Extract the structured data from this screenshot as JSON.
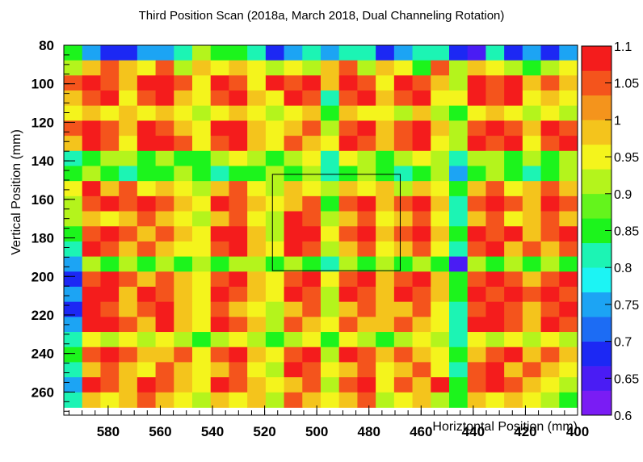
{
  "chart_data": {
    "type": "heatmap",
    "title": "Third Position Scan (2018a, March 2018, Dual Channeling Rotation)",
    "xlabel": "Horiztontal Position (mm)",
    "ylabel": "Vertical Position (mm)",
    "xlim": [
      597,
      400
    ],
    "ylim": [
      80,
      272
    ],
    "x_reversed": true,
    "x_ticks": [
      580,
      560,
      540,
      520,
      500,
      480,
      460,
      440,
      420,
      400
    ],
    "y_ticks": [
      80,
      100,
      120,
      140,
      160,
      180,
      200,
      220,
      240,
      260
    ],
    "zlim": [
      0.6,
      1.1
    ],
    "z_ticks": [
      "0.6",
      "0.65",
      "0.7",
      "0.75",
      "0.8",
      "0.85",
      "0.9",
      "0.95",
      "1",
      "1.05",
      "1.1"
    ],
    "colormap": [
      "#7a1cf4",
      "#4a1cf4",
      "#1c28f4",
      "#1c6cf4",
      "#1ca4f4",
      "#1cf4f4",
      "#1cf4b4",
      "#1cf41c",
      "#64f41c",
      "#b4f41c",
      "#f4f41c",
      "#f4c41c",
      "#f4941c",
      "#f4541c",
      "#f41c1c"
    ],
    "cells_x": 28,
    "cells_y": 24,
    "z_rows": [
      [
        0.85,
        0.75,
        0.7,
        0.7,
        0.75,
        0.75,
        0.8,
        0.9,
        0.85,
        0.85,
        0.8,
        0.7,
        0.75,
        0.8,
        0.75,
        0.8,
        0.8,
        0.7,
        0.75,
        0.8,
        0.8,
        0.7,
        0.65,
        0.8,
        0.7,
        0.75,
        0.7,
        0.75
      ],
      [
        0.9,
        1.0,
        1.05,
        1.0,
        0.95,
        1.05,
        0.9,
        1.0,
        0.95,
        1.0,
        0.95,
        0.9,
        0.95,
        0.9,
        1.0,
        1.05,
        0.9,
        1.0,
        0.95,
        0.85,
        1.05,
        0.9,
        1.0,
        0.95,
        0.9,
        0.85,
        0.9,
        0.95
      ],
      [
        1.05,
        1.1,
        1.05,
        1.0,
        1.1,
        1.1,
        1.05,
        0.95,
        1.1,
        1.05,
        0.95,
        1.1,
        1.05,
        1.1,
        1.0,
        1.1,
        1.05,
        0.95,
        1.1,
        1.05,
        1.0,
        0.9,
        1.1,
        1.05,
        1.1,
        1.0,
        1.05,
        1.0
      ],
      [
        1.0,
        1.05,
        1.1,
        0.95,
        1.05,
        1.1,
        1.0,
        0.95,
        1.05,
        1.1,
        1.0,
        0.95,
        1.1,
        1.05,
        0.8,
        1.05,
        1.1,
        1.0,
        1.05,
        1.1,
        0.95,
        0.95,
        1.1,
        1.05,
        1.1,
        0.95,
        1.0,
        0.95
      ],
      [
        0.95,
        1.0,
        0.95,
        1.0,
        0.95,
        1.0,
        0.95,
        0.9,
        0.95,
        1.0,
        0.95,
        0.9,
        0.95,
        1.0,
        0.85,
        1.0,
        0.95,
        0.95,
        0.9,
        1.0,
        0.9,
        0.85,
        0.95,
        1.0,
        0.95,
        0.9,
        0.95,
        0.9
      ],
      [
        1.05,
        1.1,
        1.05,
        1.0,
        1.1,
        1.05,
        1.0,
        0.95,
        1.1,
        1.1,
        1.0,
        0.95,
        1.0,
        1.05,
        0.9,
        1.05,
        1.1,
        1.0,
        1.05,
        1.1,
        1.0,
        0.9,
        1.05,
        1.1,
        1.05,
        1.0,
        1.1,
        1.05
      ],
      [
        1.0,
        1.1,
        1.05,
        0.95,
        1.1,
        1.1,
        1.05,
        0.95,
        1.05,
        1.1,
        1.0,
        0.95,
        1.05,
        1.0,
        0.95,
        1.1,
        1.05,
        1.0,
        1.05,
        1.1,
        0.95,
        0.9,
        1.1,
        1.05,
        1.1,
        0.95,
        1.05,
        1.1
      ],
      [
        0.8,
        0.85,
        0.9,
        0.9,
        0.85,
        0.9,
        0.85,
        0.85,
        0.9,
        0.95,
        0.9,
        0.85,
        0.9,
        0.95,
        0.8,
        0.95,
        0.9,
        0.85,
        0.9,
        0.95,
        0.9,
        0.8,
        0.9,
        0.9,
        0.85,
        0.9,
        0.85,
        0.9
      ],
      [
        0.85,
        0.9,
        0.85,
        0.8,
        0.85,
        0.85,
        0.9,
        0.85,
        0.8,
        0.85,
        0.85,
        0.9,
        0.85,
        0.9,
        0.8,
        0.85,
        0.9,
        0.85,
        0.8,
        0.85,
        0.9,
        0.75,
        0.85,
        0.9,
        0.85,
        0.8,
        0.85,
        0.9
      ],
      [
        0.95,
        1.1,
        1.0,
        1.05,
        0.95,
        1.0,
        0.95,
        0.9,
        1.0,
        1.05,
        0.95,
        0.9,
        1.0,
        0.95,
        0.9,
        1.0,
        0.95,
        1.0,
        0.9,
        1.0,
        0.95,
        0.85,
        1.0,
        1.05,
        0.95,
        1.0,
        1.05,
        1.0
      ],
      [
        0.9,
        1.05,
        1.1,
        1.05,
        1.1,
        1.05,
        1.0,
        0.95,
        1.1,
        1.05,
        1.0,
        0.95,
        1.0,
        1.05,
        0.85,
        1.05,
        1.1,
        1.0,
        1.05,
        1.1,
        1.0,
        0.8,
        1.05,
        1.1,
        1.05,
        1.0,
        1.1,
        1.05
      ],
      [
        0.9,
        1.0,
        0.95,
        1.0,
        1.05,
        1.0,
        0.95,
        0.9,
        1.0,
        1.05,
        0.95,
        0.9,
        1.1,
        1.05,
        0.9,
        1.0,
        1.05,
        0.95,
        1.0,
        1.05,
        0.95,
        0.8,
        1.0,
        1.05,
        0.95,
        1.0,
        1.05,
        1.0
      ],
      [
        0.85,
        1.05,
        1.1,
        1.05,
        1.0,
        1.05,
        1.0,
        0.95,
        1.1,
        1.1,
        1.0,
        0.9,
        1.1,
        1.1,
        0.95,
        1.05,
        1.1,
        1.0,
        1.05,
        1.1,
        1.0,
        0.85,
        1.1,
        1.05,
        1.1,
        1.0,
        1.05,
        1.1
      ],
      [
        0.8,
        1.1,
        1.05,
        1.0,
        1.05,
        1.0,
        0.95,
        0.95,
        1.05,
        1.1,
        1.0,
        0.95,
        1.1,
        1.05,
        0.9,
        1.0,
        1.05,
        0.95,
        1.0,
        1.05,
        0.95,
        0.8,
        1.05,
        1.1,
        1.0,
        1.05,
        1.0,
        1.05
      ],
      [
        0.75,
        0.9,
        0.85,
        0.9,
        0.85,
        0.9,
        0.85,
        0.9,
        0.85,
        0.9,
        0.9,
        0.85,
        0.9,
        0.85,
        0.8,
        0.9,
        0.85,
        0.9,
        0.85,
        0.9,
        0.85,
        0.65,
        0.9,
        0.85,
        0.9,
        0.85,
        0.9,
        0.85
      ],
      [
        0.7,
        1.05,
        1.1,
        1.05,
        1.0,
        1.05,
        1.0,
        0.95,
        1.05,
        1.1,
        1.0,
        0.95,
        1.05,
        1.1,
        0.95,
        1.05,
        1.1,
        1.0,
        1.05,
        1.1,
        1.0,
        0.85,
        1.05,
        1.1,
        1.05,
        1.0,
        1.05,
        1.1
      ],
      [
        0.75,
        1.1,
        1.1,
        1.0,
        1.1,
        1.05,
        1.0,
        0.95,
        1.1,
        1.05,
        1.0,
        0.95,
        1.1,
        1.05,
        0.9,
        1.1,
        1.05,
        1.0,
        1.1,
        1.05,
        1.0,
        0.85,
        1.1,
        1.05,
        1.1,
        1.05,
        1.1,
        1.05
      ],
      [
        0.7,
        1.1,
        1.05,
        1.0,
        1.05,
        1.1,
        1.0,
        0.95,
        1.05,
        1.0,
        0.95,
        0.9,
        1.0,
        1.05,
        0.9,
        1.0,
        1.05,
        1.0,
        1.0,
        1.05,
        0.95,
        0.8,
        1.05,
        1.1,
        1.05,
        1.0,
        1.05,
        1.1
      ],
      [
        0.75,
        1.1,
        1.1,
        1.05,
        1.0,
        1.1,
        1.0,
        0.95,
        1.1,
        1.05,
        1.0,
        0.9,
        1.05,
        1.0,
        0.95,
        1.05,
        1.0,
        1.0,
        1.05,
        1.0,
        0.95,
        0.8,
        1.1,
        1.1,
        1.05,
        1.0,
        1.1,
        1.05
      ],
      [
        0.8,
        0.95,
        0.9,
        0.95,
        0.9,
        0.95,
        0.9,
        0.85,
        0.9,
        0.95,
        0.9,
        0.85,
        0.9,
        0.95,
        0.85,
        0.95,
        0.9,
        0.85,
        0.9,
        0.95,
        0.9,
        0.8,
        0.95,
        0.9,
        0.95,
        0.9,
        0.95,
        0.9
      ],
      [
        0.85,
        1.05,
        1.1,
        1.05,
        1.0,
        1.0,
        1.05,
        0.95,
        1.05,
        1.1,
        1.0,
        0.95,
        1.05,
        1.1,
        0.9,
        1.1,
        1.05,
        1.0,
        1.05,
        1.0,
        0.95,
        0.85,
        1.0,
        1.05,
        1.1,
        1.0,
        1.05,
        1.0
      ],
      [
        0.8,
        1.0,
        1.05,
        1.0,
        0.95,
        1.05,
        1.0,
        0.95,
        1.0,
        1.05,
        0.95,
        0.9,
        1.1,
        1.05,
        0.95,
        1.0,
        1.05,
        0.95,
        1.0,
        1.05,
        0.95,
        0.8,
        1.05,
        1.1,
        1.0,
        1.05,
        1.0,
        0.95
      ],
      [
        0.75,
        1.1,
        1.05,
        1.0,
        1.1,
        1.05,
        1.0,
        0.95,
        1.1,
        1.05,
        1.0,
        0.95,
        1.0,
        1.05,
        0.9,
        1.05,
        1.1,
        0.95,
        1.05,
        1.0,
        1.1,
        0.85,
        1.05,
        1.1,
        1.05,
        1.0,
        0.95,
        0.9
      ],
      [
        0.8,
        1.0,
        0.95,
        1.0,
        1.05,
        1.0,
        0.95,
        0.9,
        1.0,
        0.95,
        1.0,
        0.9,
        1.05,
        1.0,
        0.95,
        1.0,
        1.05,
        0.9,
        0.95,
        1.0,
        0.9,
        0.85,
        1.0,
        0.95,
        1.0,
        0.95,
        0.9,
        0.85
      ]
    ],
    "highlight_box": {
      "x": [
        517,
        468
      ],
      "y": [
        147,
        197
      ]
    }
  }
}
